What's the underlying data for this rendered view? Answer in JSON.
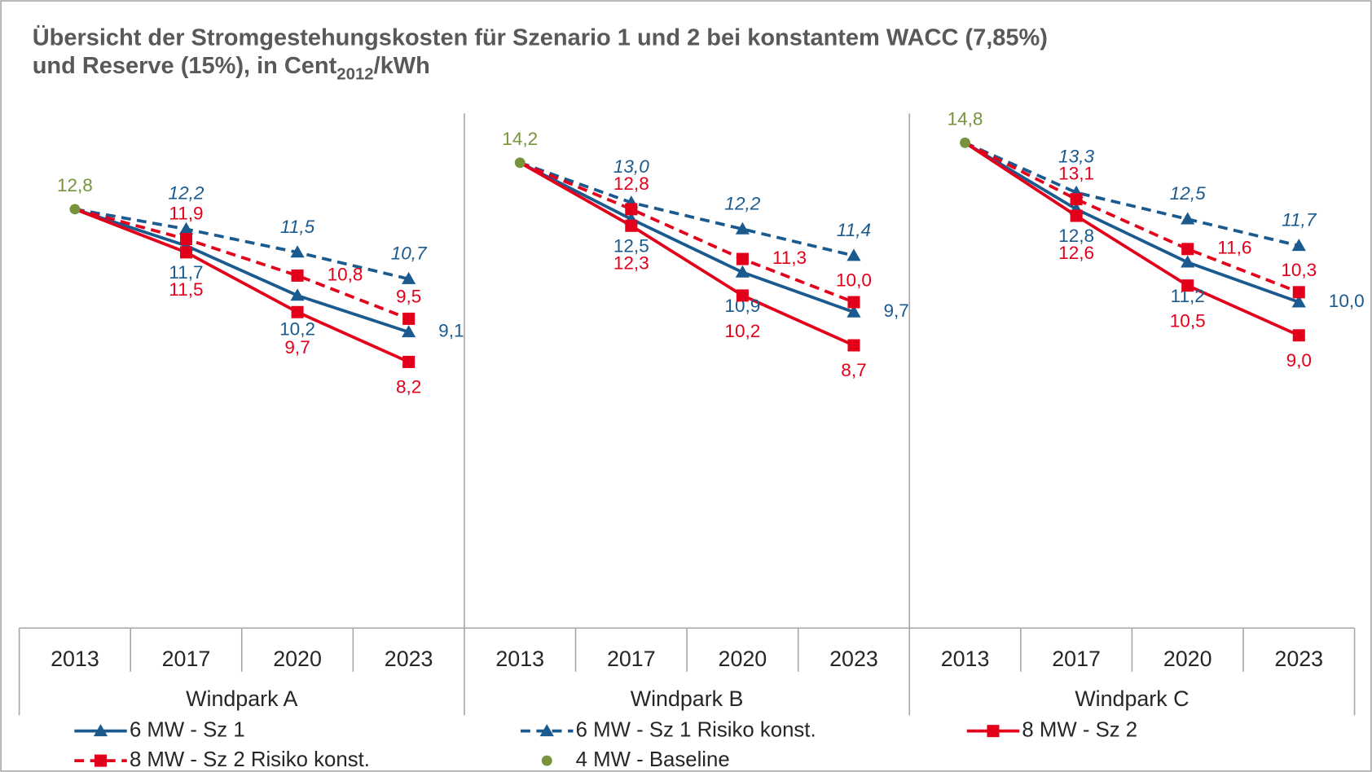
{
  "chart_data": {
    "type": "line",
    "title": {
      "line1": "Übersicht der Stromgestehungskosten für Szenario 1 und 2 bei konstantem WACC (7,85%)",
      "line2": "und Reserve (15%), in Cent",
      "subscript": "2012",
      "suffix": "/kWh"
    },
    "groups": [
      {
        "name": "Windpark A",
        "categories": [
          "2013",
          "2017",
          "2020",
          "2023"
        ]
      },
      {
        "name": "Windpark B",
        "categories": [
          "2013",
          "2017",
          "2020",
          "2023"
        ]
      },
      {
        "name": "Windpark C",
        "categories": [
          "2013",
          "2017",
          "2020",
          "2023"
        ]
      }
    ],
    "ylim": [
      0,
      16
    ],
    "series": [
      {
        "name": "6 MW - Sz 1",
        "color": "#1a5a8e",
        "dash": false,
        "marker": "triangle",
        "italic": false,
        "values": [
          [
            12.8,
            11.7,
            10.2,
            9.1
          ],
          [
            14.2,
            12.5,
            10.9,
            9.7
          ],
          [
            14.8,
            12.8,
            11.2,
            10.0
          ]
        ],
        "value_labels": [
          [
            null,
            "11,7",
            "10,2",
            "9,1"
          ],
          [
            null,
            "12,5",
            "10,9",
            "9,7"
          ],
          [
            null,
            "12,8",
            "11,2",
            "10,0"
          ]
        ]
      },
      {
        "name": "6 MW - Sz 1 Risiko konst.",
        "color": "#1a5a8e",
        "dash": true,
        "marker": "triangle",
        "italic": true,
        "values": [
          [
            12.8,
            12.2,
            11.5,
            10.7
          ],
          [
            14.2,
            13.0,
            12.2,
            11.4
          ],
          [
            14.8,
            13.3,
            12.5,
            11.7
          ]
        ],
        "value_labels": [
          [
            null,
            "12,2",
            "11,5",
            "10,7"
          ],
          [
            null,
            "13,0",
            "12,2",
            "11,4"
          ],
          [
            null,
            "13,3",
            "12,5",
            "11,7"
          ]
        ]
      },
      {
        "name": "8 MW - Sz 2",
        "color": "#e2001a",
        "dash": false,
        "marker": "square",
        "italic": false,
        "values": [
          [
            12.8,
            11.5,
            9.7,
            8.2
          ],
          [
            14.2,
            12.3,
            10.2,
            8.7
          ],
          [
            14.8,
            12.6,
            10.5,
            9.0
          ]
        ],
        "value_labels": [
          [
            null,
            "11,5",
            "9,7",
            "8,2"
          ],
          [
            null,
            "12,3",
            "10,2",
            "8,7"
          ],
          [
            null,
            "12,6",
            "10,5",
            "9,0"
          ]
        ]
      },
      {
        "name": "8 MW - Sz 2 Risiko konst.",
        "color": "#e2001a",
        "dash": true,
        "marker": "square",
        "italic": false,
        "values": [
          [
            12.8,
            11.9,
            10.8,
            9.5
          ],
          [
            14.2,
            12.8,
            11.3,
            10.0
          ],
          [
            14.8,
            13.1,
            11.6,
            10.3
          ]
        ],
        "value_labels": [
          [
            null,
            "11,9",
            "10,8",
            "9,5"
          ],
          [
            null,
            "12,8",
            "11,3",
            "10,0"
          ],
          [
            null,
            "13,1",
            "11,6",
            "10,3"
          ]
        ]
      },
      {
        "name": "4 MW - Baseline",
        "color": "#77933c",
        "dash": false,
        "marker": "dot",
        "italic": false,
        "line": false,
        "values": [
          [
            12.8,
            null,
            null,
            null
          ],
          [
            14.2,
            null,
            null,
            null
          ],
          [
            14.8,
            null,
            null,
            null
          ]
        ],
        "value_labels": [
          [
            "12,8",
            null,
            null,
            null
          ],
          [
            "14,2",
            null,
            null,
            null
          ],
          [
            "14,8",
            null,
            null,
            null
          ]
        ]
      }
    ]
  }
}
